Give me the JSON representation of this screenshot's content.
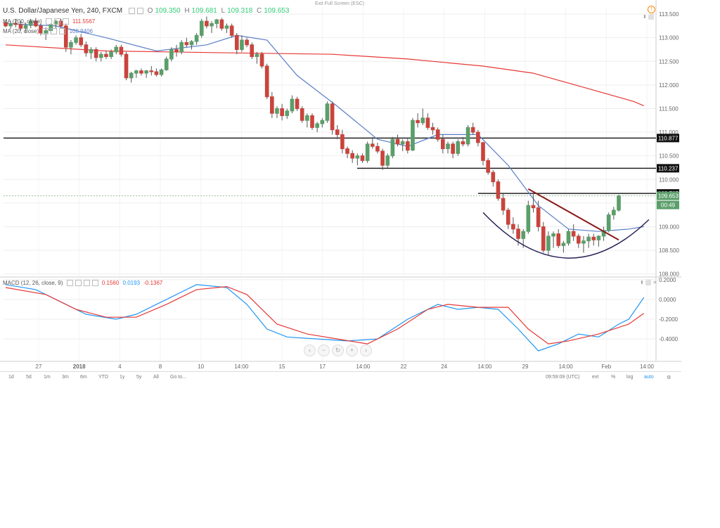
{
  "header": {
    "symbol": "U.S. Dollar/Japanese Yen, 240, FXCM",
    "open_label": "O",
    "open": "109.350",
    "high_label": "H",
    "high": "109.681",
    "low_label": "L",
    "low": "109.318",
    "close_label": "C",
    "close": "109.653",
    "exit_fullscreen": "Exit Full Screen (ESC)"
  },
  "indicators": {
    "ma200": {
      "label": "MA (200, close)",
      "value": "111.5567",
      "color": "#e53935"
    },
    "ma20": {
      "label": "MA (20, close)",
      "value": "108.9406",
      "color": "#5a7fc7"
    },
    "macd": {
      "label": "MACD (12, 26, close, 9)",
      "hist": "0.1560",
      "macd": "0.0193",
      "signal": "-0.1367",
      "hist_color": "#e53935",
      "macd_color": "#2196f3",
      "signal_color": "#e53935"
    }
  },
  "price_axis": {
    "ticks": [
      "113.500",
      "113.000",
      "112.500",
      "112.000",
      "111.500",
      "111.000",
      "110.500",
      "110.000",
      "109.500",
      "109.000",
      "108.500",
      "108.000"
    ],
    "price_tag": "109.653",
    "countdown": "00:49"
  },
  "macd_axis": {
    "ticks": [
      "0.2000",
      "0.0000",
      "-0.2000",
      "-0.4000"
    ]
  },
  "time_axis": [
    "27",
    "2018",
    "4",
    "8",
    "10",
    "14:00",
    "15",
    "17",
    "14:00",
    "22",
    "24",
    "14:00",
    "29",
    "14:00",
    "Feb",
    "14:00"
  ],
  "bottom_bar": {
    "timeframes": [
      "1d",
      "5d",
      "1m",
      "3m",
      "6m",
      "YTD",
      "1y",
      "5y",
      "All"
    ],
    "goto": "Go to...",
    "clock": "09:59:09 (UTC)",
    "ext": "ext",
    "pct": "%",
    "log": "log",
    "auto": "auto"
  },
  "colors": {
    "bull": "#5b9e6a",
    "bear": "#c9443d",
    "grid": "#eeeeee",
    "resistance": "#222222",
    "trendline": "#8b1a1a",
    "cup": "#2a2257"
  },
  "chart_data": {
    "type": "candlestick",
    "title": "U.S. Dollar/Japanese Yen, 240, FXCM",
    "ylim": [
      107.95,
      113.65
    ],
    "macd_ylim": [
      -0.62,
      0.22
    ],
    "horizontal_levels": [
      {
        "label": "110.877",
        "value": 110.877
      },
      {
        "label": "110.237",
        "value": 110.237
      },
      {
        "label": "109.705",
        "value": 109.705
      }
    ],
    "ohlc": [
      [
        113.32,
        113.38,
        113.22,
        113.25
      ],
      [
        113.25,
        113.35,
        113.18,
        113.3
      ],
      [
        113.3,
        113.4,
        113.22,
        113.28
      ],
      [
        113.28,
        113.35,
        113.15,
        113.2
      ],
      [
        113.2,
        113.32,
        113.1,
        113.26
      ],
      [
        113.26,
        113.4,
        113.2,
        113.35
      ],
      [
        113.35,
        113.42,
        113.22,
        113.25
      ],
      [
        113.25,
        113.3,
        113.05,
        113.1
      ],
      [
        113.1,
        113.22,
        112.95,
        113.15
      ],
      [
        113.15,
        113.3,
        113.08,
        113.28
      ],
      [
        113.28,
        113.38,
        113.2,
        113.35
      ],
      [
        113.35,
        113.4,
        113.2,
        113.25
      ],
      [
        113.25,
        113.3,
        112.7,
        112.8
      ],
      [
        112.8,
        112.95,
        112.65,
        112.9
      ],
      [
        112.9,
        113.05,
        112.85,
        113.0
      ],
      [
        113.0,
        113.08,
        112.8,
        112.85
      ],
      [
        112.85,
        112.92,
        112.6,
        112.68
      ],
      [
        112.68,
        112.8,
        112.55,
        112.75
      ],
      [
        112.75,
        112.8,
        112.5,
        112.58
      ],
      [
        112.58,
        112.7,
        112.5,
        112.65
      ],
      [
        112.65,
        112.72,
        112.55,
        112.6
      ],
      [
        112.6,
        112.75,
        112.55,
        112.7
      ],
      [
        112.7,
        112.85,
        112.65,
        112.8
      ],
      [
        112.8,
        112.85,
        112.6,
        112.65
      ],
      [
        112.65,
        112.7,
        112.1,
        112.15
      ],
      [
        112.15,
        112.28,
        112.05,
        112.25
      ],
      [
        112.25,
        112.32,
        112.15,
        112.3
      ],
      [
        112.3,
        112.35,
        112.2,
        112.25
      ],
      [
        112.25,
        112.32,
        112.15,
        112.3
      ],
      [
        112.3,
        112.4,
        112.2,
        112.28
      ],
      [
        112.28,
        112.35,
        112.18,
        112.22
      ],
      [
        112.22,
        112.35,
        112.18,
        112.32
      ],
      [
        112.32,
        112.6,
        112.3,
        112.55
      ],
      [
        112.55,
        112.8,
        112.5,
        112.75
      ],
      [
        112.75,
        112.85,
        112.6,
        112.7
      ],
      [
        112.7,
        112.95,
        112.65,
        112.9
      ],
      [
        112.9,
        113.0,
        112.8,
        112.85
      ],
      [
        112.85,
        112.95,
        112.75,
        112.92
      ],
      [
        112.92,
        113.1,
        112.85,
        113.05
      ],
      [
        113.05,
        113.4,
        113.0,
        113.35
      ],
      [
        113.35,
        113.45,
        113.2,
        113.25
      ],
      [
        113.25,
        113.35,
        113.1,
        113.3
      ],
      [
        113.3,
        113.4,
        113.2,
        113.38
      ],
      [
        113.38,
        113.42,
        113.15,
        113.2
      ],
      [
        113.2,
        113.3,
        113.1,
        113.25
      ],
      [
        113.25,
        113.3,
        113.0,
        113.05
      ],
      [
        113.05,
        113.1,
        112.65,
        112.75
      ],
      [
        112.75,
        113.05,
        112.7,
        112.95
      ],
      [
        112.95,
        113.0,
        112.8,
        112.85
      ],
      [
        112.85,
        112.9,
        112.55,
        112.6
      ],
      [
        112.6,
        112.7,
        112.45,
        112.65
      ],
      [
        112.65,
        112.7,
        112.35,
        112.4
      ],
      [
        112.4,
        112.45,
        111.7,
        111.75
      ],
      [
        111.75,
        111.85,
        111.3,
        111.4
      ],
      [
        111.4,
        111.55,
        111.3,
        111.5
      ],
      [
        111.5,
        111.6,
        111.25,
        111.35
      ],
      [
        111.35,
        111.5,
        111.28,
        111.45
      ],
      [
        111.45,
        111.78,
        111.4,
        111.7
      ],
      [
        111.7,
        111.75,
        111.45,
        111.5
      ],
      [
        111.5,
        111.55,
        111.2,
        111.25
      ],
      [
        111.25,
        111.4,
        111.1,
        111.35
      ],
      [
        111.35,
        111.4,
        111.05,
        111.1
      ],
      [
        111.1,
        111.22,
        111.0,
        111.18
      ],
      [
        111.18,
        111.3,
        111.1,
        111.25
      ],
      [
        111.25,
        111.65,
        111.2,
        111.6
      ],
      [
        111.6,
        111.65,
        110.95,
        111.05
      ],
      [
        111.05,
        111.15,
        110.85,
        110.95
      ],
      [
        110.95,
        111.05,
        110.55,
        110.65
      ],
      [
        110.65,
        110.7,
        110.45,
        110.55
      ],
      [
        110.55,
        110.62,
        110.35,
        110.45
      ],
      [
        110.45,
        110.55,
        110.3,
        110.5
      ],
      [
        110.5,
        110.55,
        110.35,
        110.4
      ],
      [
        110.4,
        110.8,
        110.35,
        110.75
      ],
      [
        110.75,
        110.9,
        110.65,
        110.7
      ],
      [
        110.7,
        110.78,
        110.55,
        110.6
      ],
      [
        110.6,
        110.65,
        110.2,
        110.3
      ],
      [
        110.3,
        110.55,
        110.25,
        110.5
      ],
      [
        110.5,
        110.9,
        110.45,
        110.85
      ],
      [
        110.85,
        110.95,
        110.7,
        110.75
      ],
      [
        110.75,
        110.85,
        110.6,
        110.8
      ],
      [
        110.8,
        110.88,
        110.55,
        110.62
      ],
      [
        110.62,
        111.3,
        110.6,
        111.25
      ],
      [
        111.25,
        111.4,
        111.1,
        111.2
      ],
      [
        111.2,
        111.5,
        111.15,
        111.3
      ],
      [
        111.3,
        111.4,
        111.05,
        111.1
      ],
      [
        111.1,
        111.2,
        110.95,
        111.05
      ],
      [
        111.05,
        111.1,
        110.8,
        110.85
      ],
      [
        110.85,
        110.95,
        110.55,
        110.65
      ],
      [
        110.65,
        110.8,
        110.55,
        110.75
      ],
      [
        110.75,
        110.8,
        110.45,
        110.55
      ],
      [
        110.55,
        110.85,
        110.5,
        110.8
      ],
      [
        110.8,
        110.9,
        110.7,
        110.75
      ],
      [
        110.75,
        111.15,
        110.7,
        111.1
      ],
      [
        111.1,
        111.2,
        110.95,
        111.0
      ],
      [
        111.0,
        111.05,
        110.7,
        110.78
      ],
      [
        110.78,
        110.8,
        110.3,
        110.4
      ],
      [
        110.4,
        110.45,
        110.1,
        110.15
      ],
      [
        110.15,
        110.2,
        109.85,
        109.95
      ],
      [
        109.95,
        110.0,
        109.55,
        109.6
      ],
      [
        109.6,
        109.7,
        109.25,
        109.35
      ],
      [
        109.35,
        109.4,
        108.95,
        109.05
      ],
      [
        109.05,
        109.2,
        108.85,
        108.95
      ],
      [
        108.95,
        109.05,
        108.6,
        108.75
      ],
      [
        108.75,
        108.95,
        108.55,
        108.9
      ],
      [
        108.9,
        109.55,
        108.85,
        109.45
      ],
      [
        109.45,
        109.7,
        109.3,
        109.4
      ],
      [
        109.4,
        109.55,
        108.9,
        109.0
      ],
      [
        109.0,
        109.1,
        108.45,
        108.5
      ],
      [
        108.5,
        108.9,
        108.4,
        108.8
      ],
      [
        108.8,
        108.9,
        108.55,
        108.85
      ],
      [
        108.85,
        108.95,
        108.55,
        108.6
      ],
      [
        108.6,
        108.7,
        108.45,
        108.65
      ],
      [
        108.65,
        108.95,
        108.6,
        108.9
      ],
      [
        108.9,
        109.05,
        108.7,
        108.8
      ],
      [
        108.8,
        108.85,
        108.55,
        108.65
      ],
      [
        108.65,
        108.8,
        108.45,
        108.7
      ],
      [
        108.7,
        108.85,
        108.55,
        108.78
      ],
      [
        108.78,
        108.85,
        108.6,
        108.72
      ],
      [
        108.72,
        108.82,
        108.58,
        108.8
      ],
      [
        108.8,
        109.0,
        108.7,
        108.92
      ],
      [
        108.92,
        109.3,
        108.88,
        109.25
      ],
      [
        109.25,
        109.42,
        109.15,
        109.35
      ],
      [
        109.35,
        109.681,
        109.318,
        109.653
      ]
    ],
    "ma20": [
      [
        0,
        113.3
      ],
      [
        10,
        113.25
      ],
      [
        20,
        113.0
      ],
      [
        30,
        112.72
      ],
      [
        40,
        112.85
      ],
      [
        46,
        113.05
      ],
      [
        52,
        112.95
      ],
      [
        58,
        112.2
      ],
      [
        66,
        111.55
      ],
      [
        74,
        110.85
      ],
      [
        80,
        110.7
      ],
      [
        86,
        110.95
      ],
      [
        94,
        110.95
      ],
      [
        100,
        110.3
      ],
      [
        106,
        109.45
      ],
      [
        112,
        108.95
      ],
      [
        118,
        108.9
      ],
      [
        124,
        108.95
      ],
      [
        127,
        109.0
      ]
    ],
    "ma200": [
      [
        0,
        112.85
      ],
      [
        20,
        112.72
      ],
      [
        45,
        112.68
      ],
      [
        65,
        112.65
      ],
      [
        80,
        112.55
      ],
      [
        95,
        112.4
      ],
      [
        105,
        112.25
      ],
      [
        115,
        111.95
      ],
      [
        125,
        111.65
      ],
      [
        127,
        111.56
      ]
    ],
    "macd": [
      [
        0,
        0.15
      ],
      [
        6,
        0.1
      ],
      [
        10,
        0.0
      ],
      [
        16,
        -0.15
      ],
      [
        22,
        -0.2
      ],
      [
        26,
        -0.15
      ],
      [
        32,
        0.0
      ],
      [
        38,
        0.15
      ],
      [
        44,
        0.12
      ],
      [
        48,
        -0.05
      ],
      [
        52,
        -0.3
      ],
      [
        56,
        -0.38
      ],
      [
        62,
        -0.4
      ],
      [
        68,
        -0.42
      ],
      [
        74,
        -0.4
      ],
      [
        80,
        -0.2
      ],
      [
        86,
        -0.05
      ],
      [
        90,
        -0.1
      ],
      [
        94,
        -0.08
      ],
      [
        98,
        -0.1
      ],
      [
        102,
        -0.3
      ],
      [
        106,
        -0.52
      ],
      [
        110,
        -0.45
      ],
      [
        114,
        -0.35
      ],
      [
        118,
        -0.38
      ],
      [
        122,
        -0.25
      ],
      [
        124,
        -0.2
      ],
      [
        127,
        0.02
      ]
    ],
    "signal": [
      [
        0,
        0.12
      ],
      [
        8,
        0.05
      ],
      [
        14,
        -0.1
      ],
      [
        20,
        -0.18
      ],
      [
        26,
        -0.18
      ],
      [
        32,
        -0.05
      ],
      [
        38,
        0.1
      ],
      [
        44,
        0.13
      ],
      [
        48,
        0.05
      ],
      [
        54,
        -0.25
      ],
      [
        60,
        -0.35
      ],
      [
        66,
        -0.4
      ],
      [
        72,
        -0.45
      ],
      [
        78,
        -0.3
      ],
      [
        84,
        -0.1
      ],
      [
        88,
        -0.05
      ],
      [
        94,
        -0.08
      ],
      [
        100,
        -0.08
      ],
      [
        104,
        -0.3
      ],
      [
        108,
        -0.45
      ],
      [
        112,
        -0.42
      ],
      [
        118,
        -0.35
      ],
      [
        124,
        -0.25
      ],
      [
        127,
        -0.14
      ]
    ]
  }
}
